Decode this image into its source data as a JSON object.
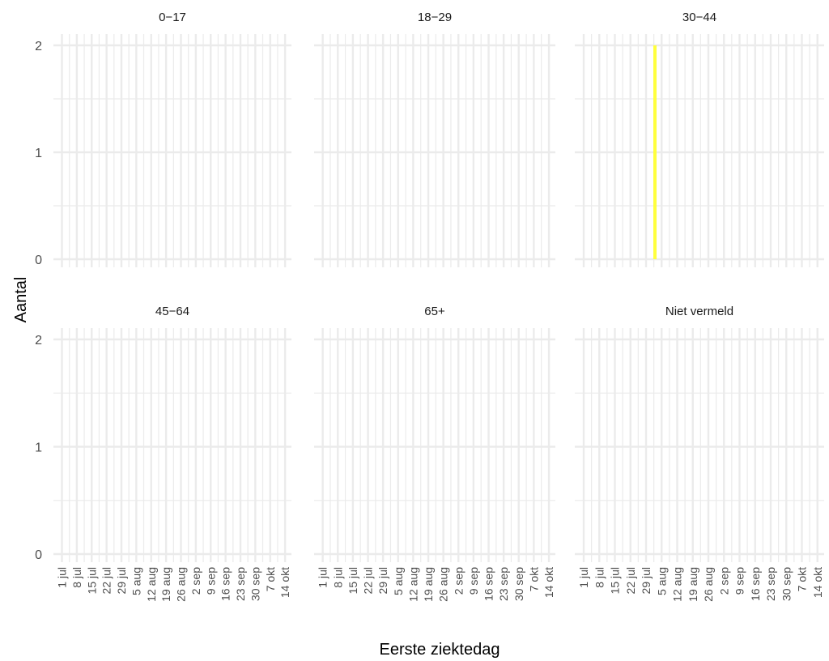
{
  "chart_data": {
    "type": "bar",
    "ylabel": "Aantal",
    "xlabel": "Eerste ziektedag",
    "ylim": [
      0,
      2
    ],
    "y_ticks": [
      0,
      1,
      2
    ],
    "x_range": [
      "2020-06-27",
      "2020-10-17"
    ],
    "x_ticks": [
      {
        "date": "2020-07-01",
        "label": "1 jul"
      },
      {
        "date": "2020-07-08",
        "label": "8 jul"
      },
      {
        "date": "2020-07-15",
        "label": "15 jul"
      },
      {
        "date": "2020-07-22",
        "label": "22 jul"
      },
      {
        "date": "2020-07-29",
        "label": "29 jul"
      },
      {
        "date": "2020-08-05",
        "label": "5 aug"
      },
      {
        "date": "2020-08-12",
        "label": "12 aug"
      },
      {
        "date": "2020-08-19",
        "label": "19 aug"
      },
      {
        "date": "2020-08-26",
        "label": "26 aug"
      },
      {
        "date": "2020-09-02",
        "label": "2 sep"
      },
      {
        "date": "2020-09-09",
        "label": "9 sep"
      },
      {
        "date": "2020-09-16",
        "label": "16 sep"
      },
      {
        "date": "2020-09-23",
        "label": "23 sep"
      },
      {
        "date": "2020-09-30",
        "label": "30 sep"
      },
      {
        "date": "2020-10-07",
        "label": "7 okt"
      },
      {
        "date": "2020-10-14",
        "label": "14 okt"
      }
    ],
    "grid": true,
    "bar_color": "#ffff3d",
    "grid_color": "#ebebeb",
    "facets": [
      {
        "title": "0−17",
        "bars": []
      },
      {
        "title": "18−29",
        "bars": []
      },
      {
        "title": "30−44",
        "bars": [
          {
            "date": "2020-08-02",
            "value": 2
          }
        ]
      },
      {
        "title": "45−64",
        "bars": []
      },
      {
        "title": "65+",
        "bars": []
      },
      {
        "title": "Niet vermeld",
        "bars": []
      }
    ]
  }
}
